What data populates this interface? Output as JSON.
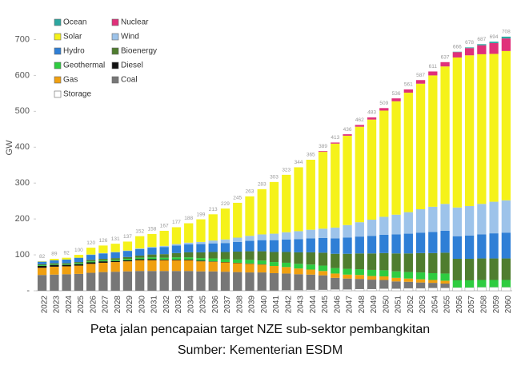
{
  "chart_data": {
    "type": "stacked_bar",
    "y_label": "GW",
    "caption": [
      "Peta jalan pencapaian target NZE sub-sektor pembangkitan",
      "Sumber: Kementerian ESDM"
    ],
    "categories": [
      "2022",
      "2023",
      "2024",
      "2025",
      "2026",
      "2027",
      "2028",
      "2029",
      "2030",
      "2031",
      "2032",
      "2033",
      "2034",
      "2035",
      "2036",
      "2037",
      "2038",
      "2039",
      "2040",
      "2041",
      "2042",
      "2043",
      "2044",
      "2045",
      "2046",
      "2047",
      "2048",
      "2049",
      "2050",
      "2051",
      "2052",
      "2053",
      "2054",
      "2055",
      "2056",
      "2057",
      "2058",
      "2059",
      "2060"
    ],
    "totals": [
      82,
      89,
      92,
      100,
      120,
      126,
      131,
      137,
      152,
      158,
      167,
      177,
      188,
      199,
      213,
      229,
      245,
      263,
      283,
      303,
      323,
      344,
      365,
      389,
      413,
      436,
      462,
      483,
      509,
      536,
      561,
      587,
      611,
      637,
      666,
      678,
      687,
      694,
      708
    ],
    "series": [
      {
        "name": "Ocean",
        "color": "#2ca7a0",
        "values": [
          0,
          0,
          0,
          0,
          0,
          0,
          0,
          0,
          0,
          0,
          0,
          0,
          0,
          0,
          0,
          0,
          0,
          0,
          0,
          0,
          0,
          0,
          0,
          0,
          0,
          0,
          0,
          0,
          0,
          0,
          0,
          0,
          0,
          0,
          1,
          2,
          3,
          4,
          5
        ]
      },
      {
        "name": "Nuclear",
        "color": "#e0307a",
        "values": [
          0,
          0,
          0,
          0,
          0,
          0,
          0,
          0,
          0,
          0,
          0,
          0,
          0,
          0,
          0,
          0,
          0,
          0,
          0,
          0,
          0,
          0,
          0,
          2,
          3,
          4,
          5,
          6,
          7,
          8,
          9,
          10,
          11,
          12,
          15,
          20,
          25,
          30,
          35
        ]
      },
      {
        "name": "Solar",
        "color": "#f5f21a",
        "values": [
          1,
          4,
          5,
          8,
          19,
          21,
          23,
          25,
          34,
          36,
          42,
          47,
          54,
          63,
          73,
          86,
          97,
          110,
          126,
          144,
          160,
          178,
          195,
          214,
          234,
          249,
          266,
          279,
          296,
          316,
          333,
          350,
          366,
          383,
          418,
          420,
          417,
          412,
          416
        ]
      },
      {
        "name": "Wind",
        "color": "#9dc3ea",
        "values": [
          0,
          0,
          0,
          0,
          1,
          1,
          1,
          1,
          2,
          2,
          3,
          4,
          5,
          6,
          8,
          10,
          12,
          14,
          16,
          18,
          20,
          22,
          24,
          26,
          30,
          35,
          40,
          45,
          50,
          55,
          60,
          65,
          70,
          75,
          80,
          82,
          85,
          88,
          90
        ]
      },
      {
        "name": "Hydro",
        "color": "#2f7fd6",
        "values": [
          7,
          8,
          10,
          12,
          14,
          15,
          16,
          17,
          18,
          19,
          20,
          21,
          22,
          23,
          24,
          25,
          27,
          29,
          31,
          33,
          35,
          37,
          39,
          41,
          43,
          45,
          47,
          49,
          51,
          53,
          55,
          57,
          59,
          61,
          63,
          65,
          67,
          70,
          72
        ]
      },
      {
        "name": "Bioenergy",
        "color": "#4f7d2f",
        "values": [
          3,
          3,
          3,
          3,
          4,
          4,
          5,
          5,
          6,
          8,
          10,
          12,
          14,
          16,
          18,
          20,
          22,
          24,
          26,
          28,
          30,
          32,
          34,
          36,
          40,
          42,
          44,
          46,
          48,
          50,
          52,
          54,
          56,
          58,
          60,
          60,
          60,
          60,
          60
        ]
      },
      {
        "name": "Geothermal",
        "color": "#2ecc40",
        "values": [
          2,
          2,
          2,
          3,
          3,
          3,
          3,
          4,
          4,
          5,
          5,
          6,
          6,
          7,
          8,
          8,
          9,
          10,
          10,
          11,
          12,
          13,
          14,
          15,
          15,
          16,
          16,
          17,
          17,
          18,
          18,
          19,
          19,
          20,
          20,
          20,
          20,
          20,
          20
        ]
      },
      {
        "name": "Diesel",
        "color": "#111111",
        "values": [
          5,
          5,
          4,
          4,
          4,
          4,
          3,
          3,
          3,
          3,
          2,
          2,
          2,
          2,
          1,
          1,
          1,
          1,
          1,
          0,
          0,
          0,
          0,
          0,
          0,
          0,
          0,
          0,
          0,
          0,
          0,
          0,
          0,
          0,
          0,
          0,
          0,
          0,
          0
        ]
      },
      {
        "name": "Gas",
        "color": "#f0a010",
        "values": [
          20,
          22,
          22,
          23,
          25,
          26,
          27,
          28,
          30,
          30,
          30,
          30,
          30,
          28,
          27,
          26,
          25,
          24,
          22,
          20,
          18,
          16,
          14,
          12,
          12,
          11,
          11,
          10,
          10,
          10,
          9,
          9,
          8,
          8,
          0,
          0,
          0,
          0,
          0
        ]
      },
      {
        "name": "Coal",
        "color": "#777777",
        "values": [
          44,
          45,
          46,
          47,
          50,
          52,
          53,
          54,
          55,
          55,
          55,
          55,
          55,
          54,
          54,
          53,
          52,
          51,
          50,
          48,
          46,
          44,
          42,
          40,
          32,
          30,
          28,
          26,
          24,
          20,
          18,
          16,
          14,
          12,
          0,
          0,
          0,
          0,
          0
        ]
      },
      {
        "name": "Storage",
        "color": "#ffffff",
        "values": [
          0,
          0,
          0,
          0,
          0,
          0,
          0,
          0,
          0,
          0,
          0,
          0,
          0,
          0,
          0,
          0,
          0,
          0,
          1,
          1,
          2,
          2,
          3,
          3,
          4,
          4,
          5,
          5,
          6,
          6,
          7,
          7,
          8,
          8,
          9,
          9,
          10,
          10,
          10
        ]
      }
    ],
    "ylim": [
      0,
      730
    ],
    "yticks": [
      {
        "value": 0,
        "label": "-"
      },
      100,
      200,
      300,
      400,
      500,
      600,
      700
    ],
    "grid": false
  }
}
